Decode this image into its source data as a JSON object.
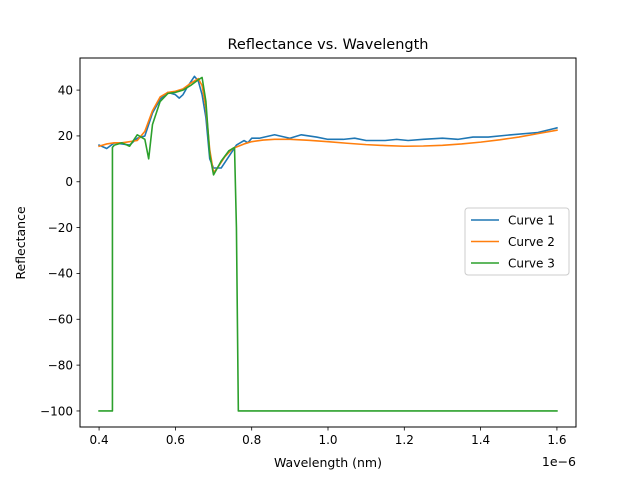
{
  "chart_data": {
    "type": "line",
    "title": "Reflectance vs. Wavelength",
    "xlabel": "Wavelength (nm)",
    "ylabel": "Reflectance",
    "x_scale_label": "1e−6",
    "xlim": [
      0.35,
      1.65
    ],
    "ylim": [
      -107,
      54
    ],
    "x_ticks": [
      0.4,
      0.6,
      0.8,
      1.0,
      1.2,
      1.4,
      1.6
    ],
    "x_tick_labels": [
      "0.4",
      "0.6",
      "0.8",
      "1.0",
      "1.2",
      "1.4",
      "1.6"
    ],
    "y_ticks": [
      40,
      20,
      0,
      -20,
      -40,
      -60,
      -80,
      -100
    ],
    "y_tick_labels": [
      "40",
      "20",
      "0",
      "−20",
      "−40",
      "−60",
      "−80",
      "−100"
    ],
    "grid": false,
    "legend_position": "center-right",
    "series": [
      {
        "name": "Curve 1",
        "color": "#1f77b4",
        "x": [
          0.4,
          0.42,
          0.44,
          0.46,
          0.48,
          0.49,
          0.5,
          0.52,
          0.54,
          0.56,
          0.58,
          0.6,
          0.61,
          0.62,
          0.63,
          0.65,
          0.66,
          0.67,
          0.68,
          0.69,
          0.7,
          0.72,
          0.74,
          0.76,
          0.78,
          0.79,
          0.8,
          0.82,
          0.86,
          0.9,
          0.93,
          0.97,
          1.0,
          1.04,
          1.07,
          1.1,
          1.15,
          1.18,
          1.21,
          1.25,
          1.3,
          1.34,
          1.38,
          1.42,
          1.48,
          1.55,
          1.6
        ],
        "y": [
          16,
          14.5,
          17,
          16.5,
          16,
          17.5,
          19,
          20,
          30,
          36,
          39,
          38,
          36.5,
          38,
          41,
          46,
          44,
          38,
          28,
          10,
          6,
          6,
          11,
          16,
          18,
          17,
          19,
          19,
          20.5,
          19,
          20.5,
          19.5,
          18.5,
          18.5,
          19,
          18,
          18,
          18.5,
          18,
          18.5,
          19,
          18.5,
          19.5,
          19.5,
          20.5,
          21.5,
          23.5
        ]
      },
      {
        "name": "Curve 2",
        "color": "#ff7f0e",
        "x": [
          0.4,
          0.42,
          0.44,
          0.46,
          0.5,
          0.52,
          0.54,
          0.56,
          0.58,
          0.6,
          0.62,
          0.64,
          0.66,
          0.67,
          0.68,
          0.69,
          0.7,
          0.71,
          0.73,
          0.75,
          0.78,
          0.8,
          0.83,
          0.86,
          0.9,
          0.95,
          1.0,
          1.05,
          1.1,
          1.15,
          1.2,
          1.25,
          1.3,
          1.35,
          1.4,
          1.45,
          1.5,
          1.55,
          1.6
        ],
        "y": [
          15.5,
          16.5,
          17,
          17,
          18,
          22,
          31,
          37,
          39,
          39.5,
          40.5,
          43,
          45,
          42,
          32,
          14,
          4,
          6,
          11,
          14.5,
          16.5,
          17.5,
          18.2,
          18.5,
          18.5,
          18.1,
          17.5,
          16.8,
          16.2,
          15.8,
          15.5,
          15.6,
          15.9,
          16.5,
          17.3,
          18.3,
          19.5,
          21,
          22.5
        ]
      },
      {
        "name": "Curve 3",
        "color": "#2ca02c",
        "x": [
          0.4,
          0.435,
          0.435,
          0.44,
          0.46,
          0.48,
          0.5,
          0.52,
          0.53,
          0.54,
          0.56,
          0.58,
          0.6,
          0.62,
          0.64,
          0.66,
          0.67,
          0.68,
          0.69,
          0.7,
          0.72,
          0.74,
          0.755,
          0.76,
          0.765,
          0.8,
          1.0,
          1.2,
          1.4,
          1.6
        ],
        "y": [
          -100,
          -100,
          15,
          16,
          17,
          15.5,
          20.5,
          18.5,
          10,
          25,
          35,
          38.5,
          39,
          40,
          42,
          44.5,
          45.5,
          35,
          12,
          3,
          9,
          13.5,
          15,
          -20,
          -100,
          -100,
          -100,
          -100,
          -100,
          -100
        ]
      }
    ]
  }
}
